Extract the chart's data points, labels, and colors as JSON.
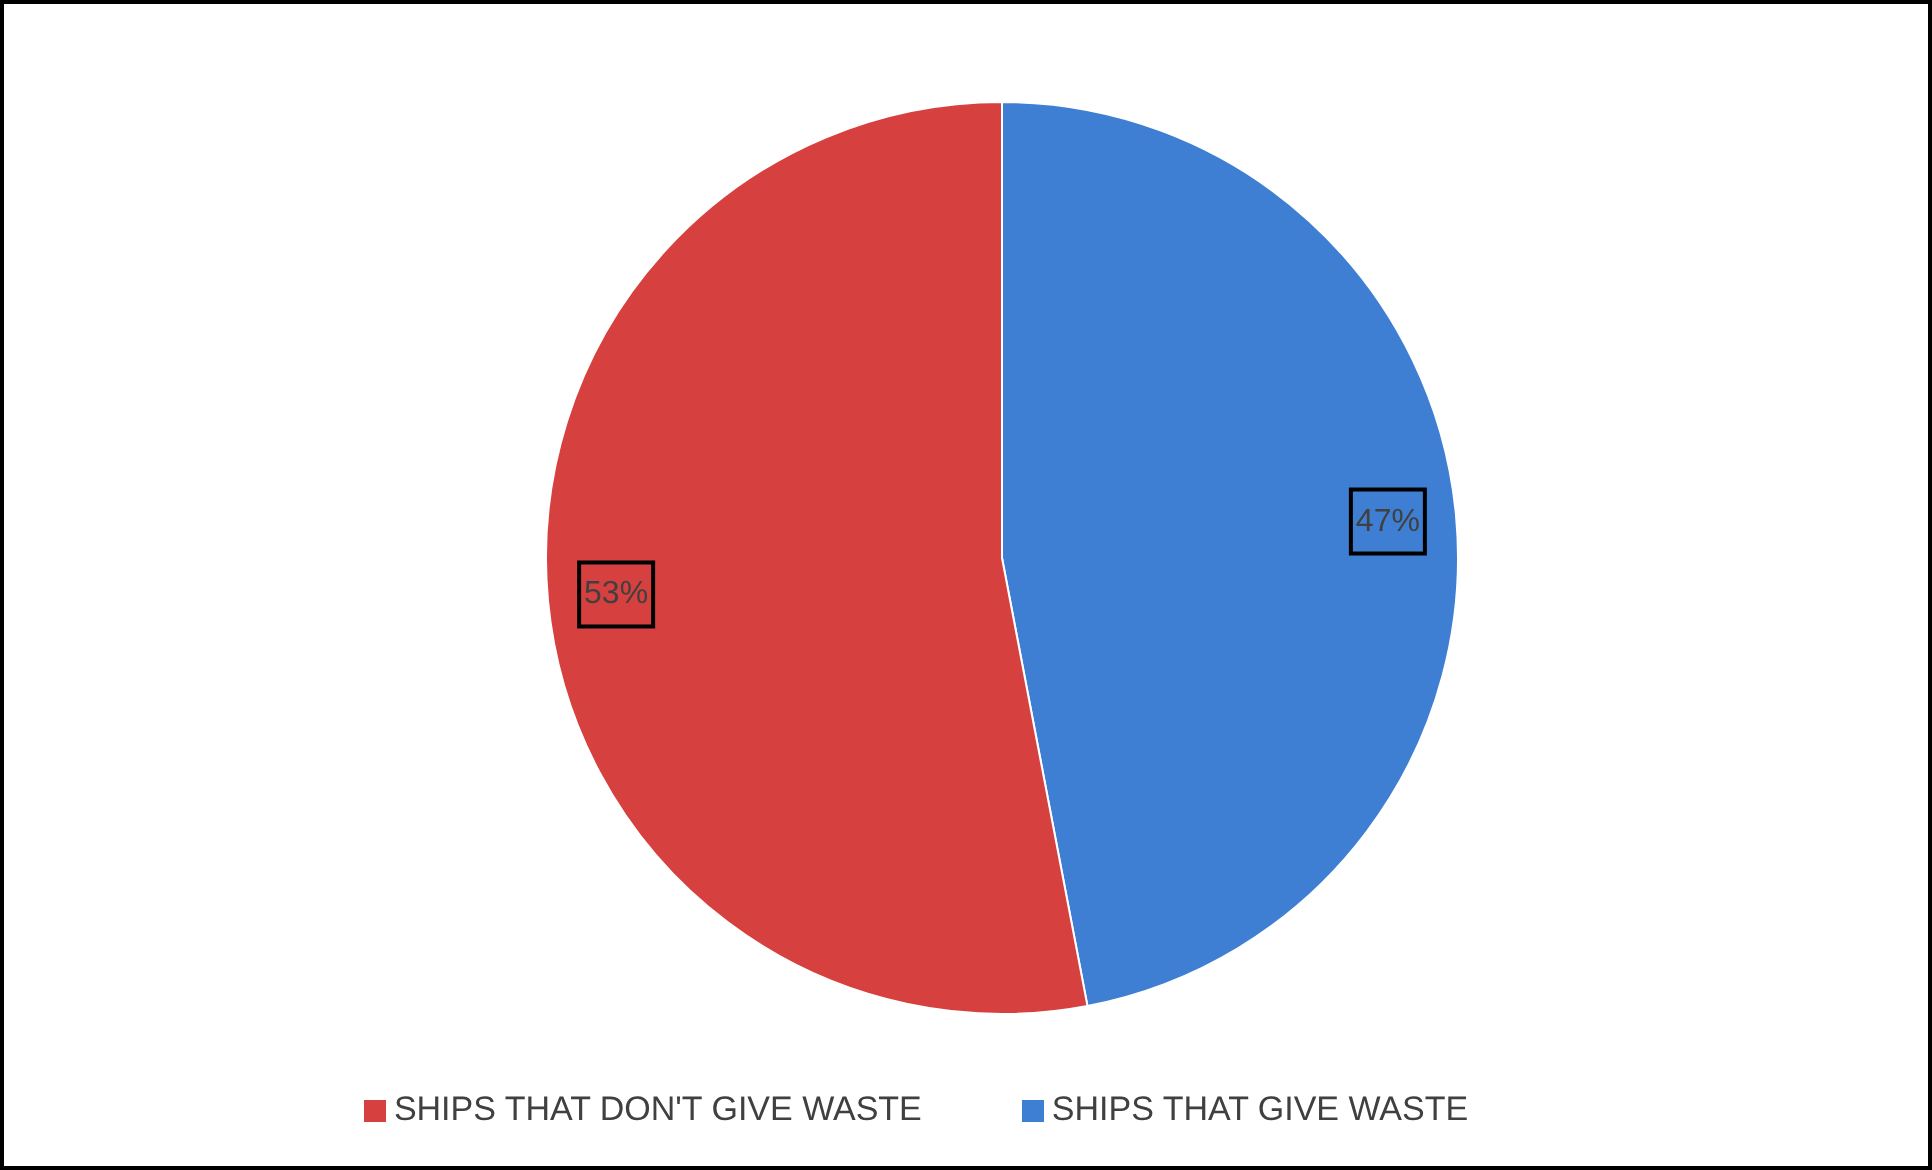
{
  "chart_data": {
    "type": "pie",
    "categories": [
      "SHIPS THAT GIVE WASTE",
      "SHIPS THAT DON'T GIVE WASTE"
    ],
    "values": [
      47,
      53
    ],
    "colors": [
      "#3f7fd3",
      "#d6403f"
    ],
    "value_labels": [
      "47%",
      "53%"
    ],
    "legend": "bottom"
  }
}
